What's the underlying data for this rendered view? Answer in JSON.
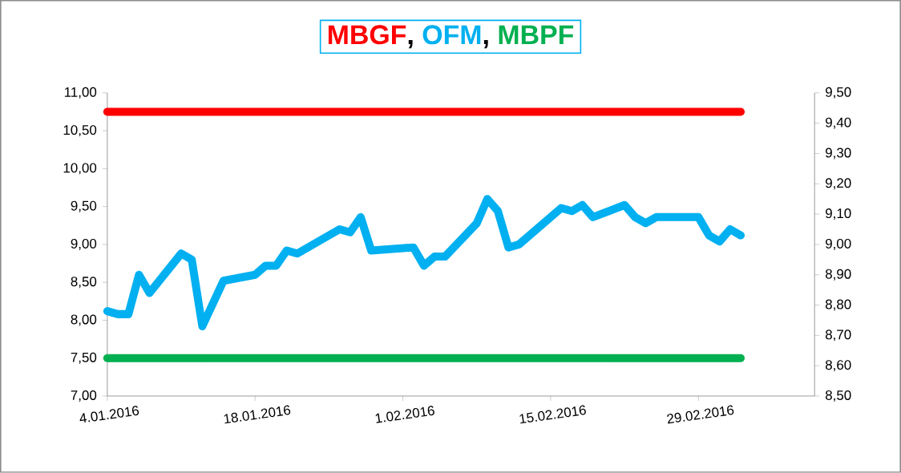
{
  "chart_data": {
    "type": "line",
    "xlim": [
      "2016-01-04",
      "2016-03-11"
    ],
    "xticks": [
      {
        "value": "2016-01-04",
        "label": "4.01.2016"
      },
      {
        "value": "2016-01-18",
        "label": "18.01.2016"
      },
      {
        "value": "2016-02-01",
        "label": "1.02.2016"
      },
      {
        "value": "2016-02-15",
        "label": "15.02.2016"
      },
      {
        "value": "2016-02-29",
        "label": "29.02.2016"
      }
    ],
    "ylim": [
      7,
      11
    ],
    "yticks": [
      {
        "value": 7,
        "label": "7,00"
      },
      {
        "value": 7.5,
        "label": "7,50"
      },
      {
        "value": 8,
        "label": "8,00"
      },
      {
        "value": 8.5,
        "label": "8,50"
      },
      {
        "value": 9,
        "label": "9,00"
      },
      {
        "value": 9.5,
        "label": "9,50"
      },
      {
        "value": 10,
        "label": "10,00"
      },
      {
        "value": 10.5,
        "label": "10,50"
      },
      {
        "value": 11,
        "label": "11,00"
      }
    ],
    "y2lim": [
      8.5,
      9.5
    ],
    "y2ticks": [
      {
        "value": 8.5,
        "label": "8,50"
      },
      {
        "value": 8.6,
        "label": "8,60"
      },
      {
        "value": 8.7,
        "label": "8,70"
      },
      {
        "value": 8.8,
        "label": "8,80"
      },
      {
        "value": 8.9,
        "label": "8,90"
      },
      {
        "value": 9.0,
        "label": "9,00"
      },
      {
        "value": 9.1,
        "label": "9,10"
      },
      {
        "value": 9.2,
        "label": "9,20"
      },
      {
        "value": 9.3,
        "label": "9,30"
      },
      {
        "value": 9.4,
        "label": "9,40"
      },
      {
        "value": 9.5,
        "label": "9,50"
      }
    ],
    "legend": "top",
    "annotations": [
      ",",
      ","
    ],
    "marker": "none",
    "line_style": "solid",
    "series": [
      {
        "name": "MBGF",
        "color": "#ff0000",
        "x": [
          "2016-01-04",
          "2016-03-04"
        ],
        "values": [
          10.75,
          10.75
        ]
      },
      {
        "name": "OFM",
        "color": "#00b0f0",
        "axis": "y2",
        "x": [
          "2016-01-04",
          "2016-01-05",
          "2016-01-06",
          "2016-01-07",
          "2016-01-08",
          "2016-01-11",
          "2016-01-12",
          "2016-01-13",
          "2016-01-15",
          "2016-01-18",
          "2016-01-19",
          "2016-01-20",
          "2016-01-21",
          "2016-01-22",
          "2016-01-26",
          "2016-01-27",
          "2016-01-28",
          "2016-01-29",
          "2016-02-02",
          "2016-02-03",
          "2016-02-04",
          "2016-02-05",
          "2016-02-08",
          "2016-02-09",
          "2016-02-10",
          "2016-02-11",
          "2016-02-12",
          "2016-02-16",
          "2016-02-17",
          "2016-02-18",
          "2016-02-19",
          "2016-02-22",
          "2016-02-23",
          "2016-02-24",
          "2016-02-25",
          "2016-02-29",
          "2016-03-01",
          "2016-03-02",
          "2016-03-03",
          "2016-03-04"
        ],
        "values": [
          8.78,
          8.77,
          8.77,
          8.9,
          8.84,
          8.97,
          8.95,
          8.73,
          8.88,
          8.9,
          8.93,
          8.93,
          8.98,
          8.97,
          9.05,
          9.04,
          9.09,
          8.98,
          8.99,
          8.93,
          8.96,
          8.96,
          9.07,
          9.15,
          9.11,
          8.99,
          9.0,
          9.12,
          9.11,
          9.13,
          9.09,
          9.13,
          9.09,
          9.07,
          9.09,
          9.09,
          9.03,
          9.01,
          9.05,
          9.03
        ]
      },
      {
        "name": "MBPF",
        "color": "#00b050",
        "x": [
          "2016-01-04",
          "2016-03-04"
        ],
        "values": [
          7.5,
          7.5
        ]
      }
    ]
  }
}
